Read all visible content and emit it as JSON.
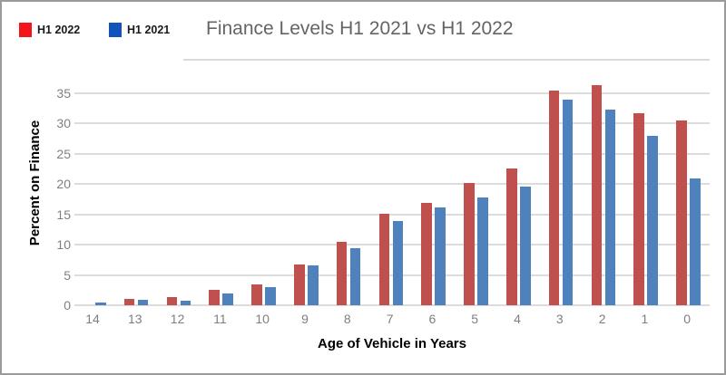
{
  "window": {
    "background": "#ffffff",
    "border_color": "#9a9a9a"
  },
  "title": {
    "text": "Finance Levels H1 2021 vs H1 2022",
    "color": "#646464"
  },
  "legend": {
    "items": [
      {
        "label": "H1 2022",
        "swatch_color": "#f2131b"
      },
      {
        "label": "H1 2021",
        "swatch_color": "#1352bd"
      }
    ]
  },
  "chart_data": {
    "type": "bar",
    "title": "Finance Levels H1 2021 vs H1 2022",
    "categories": [
      "14",
      "13",
      "12",
      "11",
      "10",
      "9",
      "8",
      "7",
      "6",
      "5",
      "4",
      "3",
      "2",
      "1",
      "0"
    ],
    "series": [
      {
        "name": "H1 2022",
        "color": "#c0504d",
        "values": [
          0,
          1.0,
          1.4,
          2.5,
          3.5,
          6.7,
          10.4,
          15.1,
          16.9,
          20.1,
          22.5,
          35.4,
          36.3,
          31.6,
          30.5
        ]
      },
      {
        "name": "H1 2021",
        "color": "#4f81bd",
        "values": [
          0.5,
          0.9,
          0.8,
          2.0,
          3.0,
          6.5,
          9.4,
          13.9,
          16.1,
          17.8,
          19.6,
          33.9,
          32.3,
          27.9,
          20.9
        ]
      }
    ],
    "xlabel": "Age of Vehicle in Years",
    "ylabel": "Percent on Finance",
    "ylim": [
      0,
      37.5
    ],
    "yticks": [
      0,
      5,
      10,
      15,
      20,
      25,
      30,
      35
    ],
    "grid": true,
    "gridline_color": "#dcdcdc",
    "tick_label_color": "#7f7f7f",
    "legend_position": "top-left"
  }
}
